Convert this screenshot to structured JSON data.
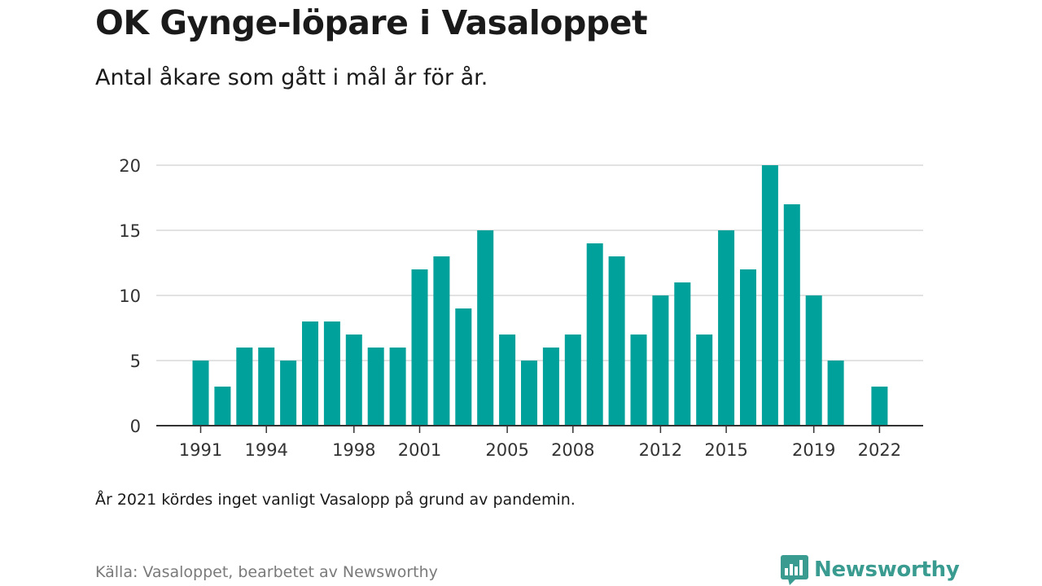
{
  "header": {
    "title": "OK Gynge-löpare i Vasaloppet",
    "subtitle": "Antal åkare som gått i mål år för år."
  },
  "footer": {
    "note": "År 2021 kördes inget vanligt Vasalopp på grund av pandemin.",
    "source": "Källa: Vasaloppet, bearbetet av Newsworthy",
    "brand": "Newsworthy",
    "brand_icon": "newsworthy-logo-icon"
  },
  "colors": {
    "bar": "#00a19a",
    "grid": "#d9d9d9",
    "axis": "#333333",
    "brand": "#3a9b91"
  },
  "chart_data": {
    "type": "bar",
    "title": "OK Gynge-löpare i Vasaloppet",
    "subtitle": "Antal åkare som gått i mål år för år.",
    "xlabel": "",
    "ylabel": "",
    "categories": [
      1991,
      1992,
      1993,
      1994,
      1995,
      1996,
      1997,
      1998,
      1999,
      2000,
      2001,
      2002,
      2003,
      2004,
      2005,
      2006,
      2007,
      2008,
      2009,
      2010,
      2011,
      2012,
      2013,
      2014,
      2015,
      2016,
      2017,
      2018,
      2019,
      2020,
      2021,
      2022
    ],
    "values": [
      5,
      3,
      6,
      6,
      5,
      8,
      8,
      7,
      6,
      6,
      12,
      13,
      9,
      15,
      7,
      5,
      6,
      7,
      14,
      13,
      7,
      10,
      11,
      7,
      15,
      12,
      20,
      17,
      10,
      5,
      null,
      3
    ],
    "x_tick_labels": [
      "1991",
      "1994",
      "1998",
      "2001",
      "2005",
      "2008",
      "2012",
      "2015",
      "2019",
      "2022"
    ],
    "y_ticks": [
      0,
      5,
      10,
      15,
      20
    ],
    "ylim": [
      0,
      20
    ],
    "grid": true,
    "legend": "none"
  }
}
